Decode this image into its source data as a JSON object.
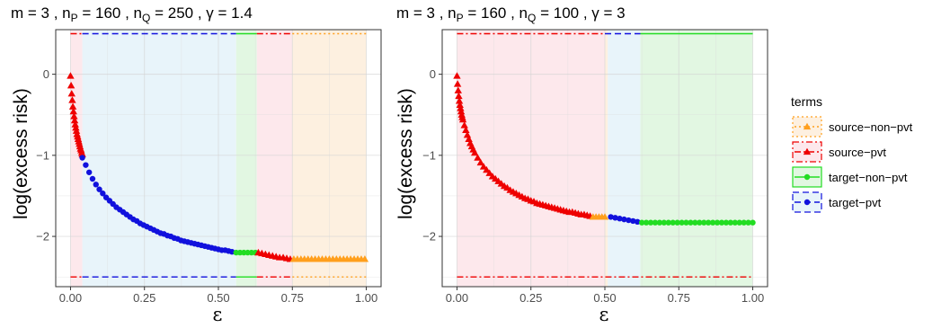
{
  "legend": {
    "title": "terms",
    "entries": [
      {
        "key": "source-non-pvt",
        "label": "source−non−pvt",
        "color": "#FF9F1C",
        "marker": "triangle",
        "dash": "dotted"
      },
      {
        "key": "source-pvt",
        "label": "source−pvt",
        "color": "#EE0000",
        "marker": "triangle",
        "dash": "dashdot"
      },
      {
        "key": "target-non-pvt",
        "label": "target−non−pvt",
        "color": "#22DD22",
        "marker": "circle",
        "dash": "solid"
      },
      {
        "key": "target-pvt",
        "label": "target−pvt",
        "color": "#1111DD",
        "marker": "circle",
        "dash": "dashed"
      }
    ],
    "fills": {
      "source-non-pvt": "#FDF0E0",
      "source-pvt": "#FDE8EC",
      "target-non-pvt": "#E2F7E2",
      "target-pvt": "#E8F4FA"
    }
  },
  "chart_data": [
    {
      "type": "scatter",
      "title_parts": [
        "m = 3 , n",
        "P",
        " = 160 , n",
        "Q",
        " = 250 ,  γ = 1.4"
      ],
      "xlabel": "ε",
      "ylabel": "log(excess risk)",
      "xlim": [
        -0.05,
        1.05
      ],
      "ylim": [
        -2.62,
        0.55
      ],
      "xticks": [
        0.0,
        0.25,
        0.5,
        0.75,
        1.0
      ],
      "xtick_labels": [
        "0.00",
        "0.25",
        "0.50",
        "0.75",
        "1.00"
      ],
      "yticks": [
        0,
        -1,
        -2
      ],
      "ytick_labels": [
        "0",
        "−1",
        "−2"
      ],
      "grid": true,
      "regions": [
        {
          "term": "source-pvt",
          "x0": 0.0,
          "x1": 0.04
        },
        {
          "term": "target-pvt",
          "x0": 0.04,
          "x1": 0.56
        },
        {
          "term": "target-non-pvt",
          "x0": 0.56,
          "x1": 0.63
        },
        {
          "term": "source-pvt",
          "x0": 0.63,
          "x1": 0.75
        },
        {
          "term": "source-non-pvt",
          "x0": 0.75,
          "x1": 1.0
        }
      ],
      "bound_lines": {
        "upper": 0.5,
        "lower": -2.5
      },
      "segments": [
        {
          "term": "source-pvt",
          "x": [
            0.0,
            0.002,
            0.004,
            0.006,
            0.008,
            0.01,
            0.012,
            0.014,
            0.016,
            0.018,
            0.02,
            0.022,
            0.024,
            0.026,
            0.028,
            0.03,
            0.032,
            0.034,
            0.036,
            0.038,
            0.04
          ],
          "y": [
            -0.02,
            -0.14,
            -0.24,
            -0.32,
            -0.4,
            -0.46,
            -0.52,
            -0.57,
            -0.62,
            -0.66,
            -0.7,
            -0.74,
            -0.77,
            -0.8,
            -0.83,
            -0.86,
            -0.89,
            -0.92,
            -0.94,
            -0.97,
            -0.99
          ]
        },
        {
          "term": "target-pvt",
          "x": [
            0.04,
            0.0515,
            0.063,
            0.0745,
            0.086,
            0.0975,
            0.109,
            0.1205,
            0.132,
            0.1435,
            0.155,
            0.1665,
            0.178,
            0.1895,
            0.201,
            0.2125,
            0.224,
            0.2355,
            0.247,
            0.2585,
            0.27,
            0.2815,
            0.293,
            0.3045,
            0.316,
            0.3275,
            0.339,
            0.3505,
            0.362,
            0.3735,
            0.385,
            0.3965,
            0.408,
            0.4195,
            0.431,
            0.4425,
            0.454,
            0.4655,
            0.477,
            0.4885,
            0.5,
            0.5115,
            0.523,
            0.5345,
            0.546
          ],
          "y": [
            -1.03,
            -1.12,
            -1.21,
            -1.29,
            -1.36,
            -1.42,
            -1.47,
            -1.52,
            -1.56,
            -1.6,
            -1.64,
            -1.67,
            -1.7,
            -1.73,
            -1.76,
            -1.79,
            -1.81,
            -1.84,
            -1.86,
            -1.88,
            -1.9,
            -1.92,
            -1.94,
            -1.96,
            -1.97,
            -1.99,
            -2.0,
            -2.02,
            -2.03,
            -2.05,
            -2.06,
            -2.07,
            -2.08,
            -2.09,
            -2.1,
            -2.11,
            -2.12,
            -2.13,
            -2.14,
            -2.15,
            -2.16,
            -2.17,
            -2.17,
            -2.18,
            -2.19
          ]
        },
        {
          "term": "target-non-pvt",
          "x": [
            0.56,
            0.573,
            0.586,
            0.599,
            0.612,
            0.625
          ],
          "y": [
            -2.2,
            -2.2,
            -2.2,
            -2.2,
            -2.2,
            -2.2
          ]
        },
        {
          "term": "source-pvt",
          "x": [
            0.635,
            0.647,
            0.659,
            0.671,
            0.683,
            0.695,
            0.707,
            0.719,
            0.731,
            0.743
          ],
          "y": [
            -2.2,
            -2.21,
            -2.22,
            -2.23,
            -2.24,
            -2.25,
            -2.26,
            -2.26,
            -2.27,
            -2.28
          ]
        },
        {
          "term": "source-non-pvt",
          "x": [
            0.755,
            0.767,
            0.779,
            0.791,
            0.803,
            0.815,
            0.827,
            0.839,
            0.851,
            0.863,
            0.875,
            0.887,
            0.899,
            0.911,
            0.923,
            0.935,
            0.947,
            0.959,
            0.971,
            0.983,
            0.995
          ],
          "y": [
            -2.28,
            -2.28,
            -2.28,
            -2.28,
            -2.28,
            -2.28,
            -2.28,
            -2.28,
            -2.28,
            -2.28,
            -2.28,
            -2.28,
            -2.28,
            -2.28,
            -2.28,
            -2.28,
            -2.28,
            -2.28,
            -2.28,
            -2.28,
            -2.28
          ]
        }
      ]
    },
    {
      "type": "scatter",
      "title_parts": [
        "m = 3 , n",
        "P",
        " = 160 , n",
        "Q",
        " = 100 ,  γ = 3"
      ],
      "xlabel": "ε",
      "ylabel": "log(excess risk)",
      "xlim": [
        -0.05,
        1.05
      ],
      "ylim": [
        -2.62,
        0.55
      ],
      "xticks": [
        0.0,
        0.25,
        0.5,
        0.75,
        1.0
      ],
      "xtick_labels": [
        "0.00",
        "0.25",
        "0.50",
        "0.75",
        "1.00"
      ],
      "yticks": [
        0,
        -1,
        -2
      ],
      "ytick_labels": [
        "0",
        "−1",
        "−2"
      ],
      "grid": true,
      "regions": [
        {
          "term": "source-pvt",
          "x0": 0.0,
          "x1": 0.5
        },
        {
          "term": "source-non-pvt",
          "x0": 0.5,
          "x1": 0.51
        },
        {
          "term": "target-pvt",
          "x0": 0.51,
          "x1": 0.62
        },
        {
          "term": "target-non-pvt",
          "x0": 0.62,
          "x1": 1.0
        }
      ],
      "bound_lines": {
        "upper": 0.5,
        "lower": -2.5
      },
      "segments": [
        {
          "term": "source-pvt",
          "x": [
            0.0,
            0.002,
            0.004,
            0.006,
            0.008,
            0.01,
            0.012,
            0.014,
            0.016,
            0.018,
            0.02,
            0.025,
            0.03,
            0.035,
            0.04,
            0.045,
            0.05,
            0.055,
            0.06,
            0.07,
            0.08,
            0.09,
            0.1,
            0.11,
            0.12,
            0.13,
            0.14,
            0.15,
            0.16,
            0.17,
            0.18,
            0.19,
            0.2,
            0.21,
            0.22,
            0.23,
            0.24,
            0.25,
            0.26,
            0.27,
            0.28,
            0.29,
            0.3,
            0.31,
            0.32,
            0.33,
            0.34,
            0.35,
            0.36,
            0.37,
            0.38,
            0.39,
            0.4,
            0.41,
            0.42,
            0.43,
            0.44,
            0.45
          ],
          "y": [
            -0.02,
            -0.12,
            -0.2,
            -0.27,
            -0.33,
            -0.38,
            -0.42,
            -0.46,
            -0.5,
            -0.53,
            -0.56,
            -0.63,
            -0.69,
            -0.75,
            -0.8,
            -0.85,
            -0.89,
            -0.93,
            -0.97,
            -1.03,
            -1.09,
            -1.14,
            -1.18,
            -1.22,
            -1.26,
            -1.29,
            -1.32,
            -1.35,
            -1.38,
            -1.4,
            -1.43,
            -1.45,
            -1.47,
            -1.49,
            -1.51,
            -1.53,
            -1.54,
            -1.56,
            -1.57,
            -1.59,
            -1.6,
            -1.61,
            -1.62,
            -1.63,
            -1.64,
            -1.65,
            -1.66,
            -1.67,
            -1.68,
            -1.69,
            -1.7,
            -1.7,
            -1.71,
            -1.72,
            -1.73,
            -1.73,
            -1.74,
            -1.75
          ]
        },
        {
          "term": "source-non-pvt",
          "x": [
            0.46,
            0.47,
            0.48,
            0.49,
            0.5
          ],
          "y": [
            -1.76,
            -1.76,
            -1.76,
            -1.76,
            -1.76
          ]
        },
        {
          "term": "target-pvt",
          "x": [
            0.52,
            0.535,
            0.55,
            0.565,
            0.58,
            0.595,
            0.61
          ],
          "y": [
            -1.76,
            -1.77,
            -1.78,
            -1.79,
            -1.8,
            -1.81,
            -1.82
          ]
        },
        {
          "term": "target-non-pvt",
          "x": [
            0.625,
            0.64,
            0.655,
            0.67,
            0.685,
            0.7,
            0.715,
            0.73,
            0.745,
            0.76,
            0.775,
            0.79,
            0.805,
            0.82,
            0.835,
            0.85,
            0.865,
            0.88,
            0.895,
            0.91,
            0.925,
            0.94,
            0.955,
            0.97,
            0.985,
            1.0
          ],
          "y": [
            -1.83,
            -1.83,
            -1.83,
            -1.83,
            -1.83,
            -1.83,
            -1.83,
            -1.83,
            -1.83,
            -1.83,
            -1.83,
            -1.83,
            -1.83,
            -1.83,
            -1.83,
            -1.83,
            -1.83,
            -1.83,
            -1.83,
            -1.83,
            -1.83,
            -1.83,
            -1.83,
            -1.83,
            -1.83,
            -1.83
          ]
        }
      ],
      "upper_line_terms": [
        {
          "term": "source-pvt",
          "x0": 0.0,
          "x1": 0.5
        },
        {
          "term": "target-pvt",
          "x0": 0.5,
          "x1": 0.62
        },
        {
          "term": "target-non-pvt",
          "x0": 0.62,
          "x1": 1.0
        }
      ],
      "lower_line_terms": [
        {
          "term": "source-pvt",
          "x0": 0.0,
          "x1": 1.0
        }
      ]
    }
  ]
}
